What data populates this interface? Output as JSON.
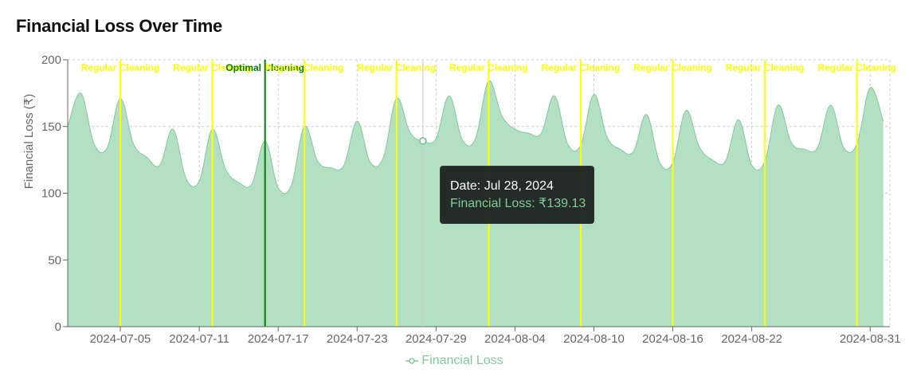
{
  "title": "Financial Loss Over Time",
  "colors": {
    "area_fill": "#b3dfc2",
    "area_stroke": "#82ca9d",
    "regular_cleaning": "#ffff00",
    "optimal_cleaning": "#008000",
    "grid": "#cccccc"
  },
  "chart_data": {
    "type": "area",
    "title": "Financial Loss Over Time",
    "xlabel": "",
    "ylabel": "Financial Loss (₹)",
    "ylim": [
      0,
      200
    ],
    "yticks": [
      0,
      50,
      100,
      150,
      200
    ],
    "x_start": "2024-07-01",
    "x_end": "2024-08-31",
    "xticks": [
      "2024-07-05",
      "2024-07-11",
      "2024-07-17",
      "2024-07-23",
      "2024-07-29",
      "2024-08-04",
      "2024-08-10",
      "2024-08-16",
      "2024-08-22",
      "2024-08-31"
    ],
    "grid": true,
    "legend_position": "bottom",
    "series": [
      {
        "name": "Financial Loss",
        "x": [
          "2024-07-01",
          "2024-07-02",
          "2024-07-03",
          "2024-07-04",
          "2024-07-05",
          "2024-07-06",
          "2024-07-07",
          "2024-07-08",
          "2024-07-09",
          "2024-07-10",
          "2024-07-11",
          "2024-07-12",
          "2024-07-13",
          "2024-07-14",
          "2024-07-15",
          "2024-07-16",
          "2024-07-17",
          "2024-07-18",
          "2024-07-19",
          "2024-07-20",
          "2024-07-21",
          "2024-07-22",
          "2024-07-23",
          "2024-07-24",
          "2024-07-25",
          "2024-07-26",
          "2024-07-27",
          "2024-07-28",
          "2024-07-29",
          "2024-07-30",
          "2024-07-31",
          "2024-08-01",
          "2024-08-02",
          "2024-08-03",
          "2024-08-04",
          "2024-08-05",
          "2024-08-06",
          "2024-08-07",
          "2024-08-08",
          "2024-08-09",
          "2024-08-10",
          "2024-08-11",
          "2024-08-12",
          "2024-08-13",
          "2024-08-14",
          "2024-08-15",
          "2024-08-16",
          "2024-08-17",
          "2024-08-18",
          "2024-08-19",
          "2024-08-20",
          "2024-08-21",
          "2024-08-22",
          "2024-08-23",
          "2024-08-24",
          "2024-08-25",
          "2024-08-26",
          "2024-08-27",
          "2024-08-28",
          "2024-08-29",
          "2024-08-30",
          "2024-08-31",
          "2024-09-01"
        ],
        "y": [
          150,
          175,
          137,
          134,
          171,
          137,
          127,
          121,
          148,
          111,
          109,
          148,
          118,
          108,
          107,
          139,
          104,
          106,
          150,
          124,
          119,
          121,
          154,
          123,
          127,
          171,
          146,
          139,
          141,
          173,
          140,
          141,
          184,
          158,
          148,
          145,
          145,
          173,
          137,
          136,
          174,
          142,
          133,
          131,
          159,
          123,
          123,
          162,
          135,
          125,
          124,
          155,
          121,
          124,
          166,
          138,
          133,
          134,
          166,
          134,
          137,
          179,
          154
        ]
      }
    ],
    "annotations": [
      {
        "date": "2024-07-05",
        "label": "Regular Cleaning",
        "kind": "regular"
      },
      {
        "date": "2024-07-12",
        "label": "Regular Cleaning",
        "kind": "regular"
      },
      {
        "date": "2024-07-16",
        "label": "Optimal Cleaning",
        "kind": "optimal"
      },
      {
        "date": "2024-07-19",
        "label": "Regular Cleaning",
        "kind": "regular"
      },
      {
        "date": "2024-07-26",
        "label": "Regular Cleaning",
        "kind": "regular"
      },
      {
        "date": "2024-08-02",
        "label": "Regular Cleaning",
        "kind": "regular"
      },
      {
        "date": "2024-08-09",
        "label": "Regular Cleaning",
        "kind": "regular"
      },
      {
        "date": "2024-08-16",
        "label": "Regular Cleaning",
        "kind": "regular"
      },
      {
        "date": "2024-08-23",
        "label": "Regular Cleaning",
        "kind": "regular"
      },
      {
        "date": "2024-08-30",
        "label": "Regular Cleaning",
        "kind": "regular"
      }
    ],
    "hover": {
      "date": "2024-07-28",
      "value": 139.13
    }
  },
  "legend": {
    "label": "Financial Loss"
  },
  "tooltip": {
    "date_line": "Date: Jul 28, 2024",
    "value_line": "Financial Loss: ₹139.13"
  }
}
